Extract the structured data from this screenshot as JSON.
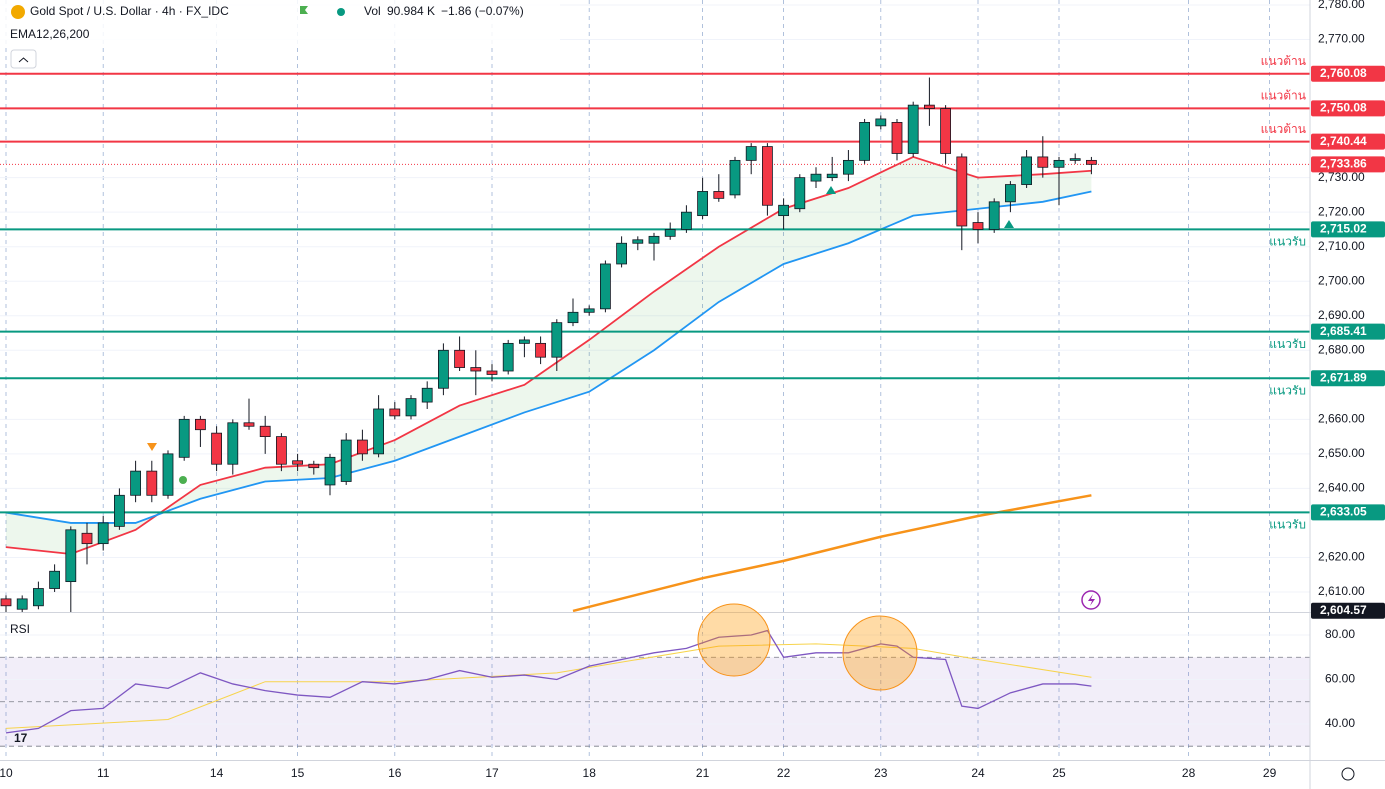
{
  "chart_data": {
    "type": "candlestick",
    "title": "Gold Spot / U.S. Dollar · 4h · FX_IDC",
    "volume_label": "Vol",
    "volume": "90.984 K",
    "change": "−1.86 (−0.07%)",
    "indicator_label": "EMA12,26,200",
    "rsi_label": "RSI",
    "categories": [
      "10",
      null,
      null,
      null,
      null,
      null,
      "11",
      null,
      null,
      null,
      null,
      null,
      null,
      "14",
      null,
      null,
      null,
      null,
      "15",
      null,
      null,
      null,
      null,
      null,
      "16",
      null,
      null,
      null,
      null,
      null,
      "17",
      null,
      null,
      null,
      null,
      null,
      "18",
      null,
      null,
      null,
      null,
      null,
      null,
      "21",
      null,
      null,
      null,
      null,
      "22",
      null,
      null,
      null,
      null,
      null,
      "23",
      null,
      null,
      null,
      null,
      null,
      "24",
      null,
      null,
      null,
      null,
      "25",
      null,
      null,
      null,
      null,
      null,
      null,
      null,
      "28",
      null,
      null,
      null,
      null,
      "29",
      null
    ],
    "candles": {
      "up_color": "#089981",
      "down_color": "#f23645",
      "open": [
        2608,
        2605,
        2606,
        2611,
        2613,
        2627,
        2624,
        2629,
        2638,
        2645,
        2638,
        2649,
        2660,
        2656,
        2647,
        2659,
        2658,
        2655,
        2648,
        2647,
        2641,
        2642,
        2654,
        2650,
        2663,
        2661,
        2665,
        2669,
        2680,
        2675,
        2674,
        2674,
        2682,
        2682,
        2678,
        2688,
        2691,
        2692,
        2705,
        2711,
        2711,
        2713,
        2715,
        2719,
        2726,
        2725,
        2735,
        2739,
        2719,
        2721,
        2729,
        2730,
        2731,
        2735,
        2745,
        2746,
        2737,
        2751,
        2750,
        2736,
        2717,
        2715,
        2723,
        2728,
        2736,
        2733,
        2735,
        2735,
        null,
        null,
        null,
        null,
        null,
        null,
        null,
        null,
        null,
        null,
        null,
        null
      ],
      "high": [
        2609,
        2609,
        2613,
        2618,
        2629,
        2630,
        2632,
        2640,
        2648,
        2648,
        2651,
        2661,
        2661,
        2658,
        2660,
        2666,
        2661,
        2656,
        2650,
        2648,
        2650,
        2656,
        2657,
        2667,
        2665,
        2667,
        2671,
        2682,
        2684,
        2680,
        2676,
        2683,
        2684,
        2684,
        2689,
        2695,
        2693,
        2706,
        2713,
        2713,
        2714,
        2717,
        2722,
        2730,
        2731,
        2736,
        2740,
        2740,
        2724,
        2731,
        2733,
        2736,
        2738,
        2747,
        2748,
        2747,
        2752,
        2759,
        2751,
        2737,
        2720,
        2724,
        2729,
        2738,
        2742,
        2736,
        2737,
        2736,
        null,
        null,
        null,
        null,
        null,
        null,
        null,
        null,
        null,
        null,
        null,
        null
      ],
      "low": [
        2604,
        2604,
        2605,
        2610,
        2604,
        2618,
        2622,
        2628,
        2636,
        2636,
        2637,
        2648,
        2652,
        2645,
        2644,
        2657,
        2650,
        2645,
        2645,
        2644,
        2638,
        2641,
        2648,
        2649,
        2660,
        2660,
        2663,
        2667,
        2674,
        2667,
        2671,
        2673,
        2678,
        2676,
        2674,
        2687,
        2690,
        2691,
        2704,
        2709,
        2706,
        2712,
        2714,
        2718,
        2723,
        2724,
        2731,
        2719,
        2715,
        2720,
        2727,
        2729,
        2729,
        2734,
        2744,
        2735,
        2736,
        2745,
        2734,
        2709,
        2711,
        2714,
        2720,
        2727,
        2730,
        2722,
        2734,
        2731,
        null,
        null,
        null,
        null,
        null,
        null,
        null,
        null,
        null,
        null,
        null,
        null
      ],
      "close": [
        2606,
        2608,
        2611,
        2616,
        2628,
        2624,
        2630,
        2638,
        2645,
        2638,
        2650,
        2660,
        2657,
        2647,
        2659,
        2658,
        2655,
        2647,
        2647,
        2646,
        2649,
        2654,
        2650,
        2663,
        2661,
        2666,
        2669,
        2680,
        2675,
        2674,
        2673,
        2682,
        2683,
        2678,
        2688,
        2691,
        2692,
        2705,
        2711,
        2712,
        2713,
        2715,
        2720,
        2726,
        2724,
        2735,
        2739,
        2722,
        2722,
        2730,
        2731,
        2731,
        2735,
        2746,
        2747,
        2737,
        2751,
        2750,
        2737,
        2716,
        2715,
        2723,
        2728,
        2736,
        2733,
        2735,
        2735.5,
        2733.86,
        null,
        null,
        null,
        null,
        null,
        null,
        null,
        null,
        null,
        null,
        null,
        null
      ]
    },
    "series": [
      {
        "name": "EMA12",
        "color": "#f23645",
        "x": [
          0,
          4,
          8,
          12,
          16,
          20,
          24,
          28,
          32,
          36,
          40,
          44,
          48,
          52,
          56,
          60,
          64,
          67
        ],
        "values": [
          2623,
          2621,
          2628,
          2641,
          2646,
          2647,
          2654,
          2664,
          2670,
          2683,
          2697,
          2710,
          2721,
          2727,
          2736,
          2730,
          2731,
          2732
        ]
      },
      {
        "name": "EMA26",
        "color": "#2196f3",
        "x": [
          0,
          4,
          8,
          12,
          16,
          20,
          24,
          28,
          32,
          36,
          40,
          44,
          48,
          52,
          56,
          60,
          64,
          67
        ],
        "values": [
          2633,
          2630,
          2630,
          2637,
          2642,
          2643,
          2648,
          2655,
          2662,
          2668,
          2680,
          2694,
          2705,
          2711,
          2719,
          2721,
          2723,
          2726
        ]
      },
      {
        "name": "EMA200",
        "color": "#f7931a",
        "x": [
          35,
          43,
          48,
          54,
          60,
          67
        ],
        "values": [
          2604.5,
          2614,
          2619,
          2626,
          2632,
          2638
        ]
      }
    ],
    "ylim": [
      2604.2,
      2781.45
    ],
    "yticks": [
      {
        "value": 2780,
        "label": "2,780.00"
      },
      {
        "value": 2770,
        "label": "2,770.00"
      },
      {
        "value": 2730,
        "label": "2,730.00"
      },
      {
        "value": 2720,
        "label": "2,720.00"
      },
      {
        "value": 2710,
        "label": "2,710.00"
      },
      {
        "value": 2700,
        "label": "2,700.00"
      },
      {
        "value": 2690,
        "label": "2,690.00"
      },
      {
        "value": 2680,
        "label": "2,680.00"
      },
      {
        "value": 2660,
        "label": "2,660.00"
      },
      {
        "value": 2650,
        "label": "2,650.00"
      },
      {
        "value": 2640,
        "label": "2,640.00"
      },
      {
        "value": 2620,
        "label": "2,620.00"
      },
      {
        "value": 2610,
        "label": "2,610.00"
      }
    ],
    "levels": [
      {
        "value": 2760.08,
        "label": "2,760.08",
        "note": "แนวต้าน",
        "color": "#f23645"
      },
      {
        "value": 2750.08,
        "label": "2,750.08",
        "note": "แนวต้าน",
        "color": "#f23645"
      },
      {
        "value": 2740.44,
        "label": "2,740.44",
        "note": "แนวต้าน",
        "color": "#f23645"
      },
      {
        "value": 2715.02,
        "label": "2,715.02",
        "note": "แนวรับ",
        "color": "#089981"
      },
      {
        "value": 2685.41,
        "label": "2,685.41",
        "note": "แนวรับ",
        "color": "#089981"
      },
      {
        "value": 2671.89,
        "label": "2,671.89",
        "note": "แนวรับ",
        "color": "#089981"
      },
      {
        "value": 2633.05,
        "label": "2,633.05",
        "note": "แนวรับ",
        "color": "#089981"
      }
    ],
    "last_price": {
      "value": 2733.86,
      "label": "2,733.86",
      "color": "#f23645"
    },
    "axis_marker": {
      "value": 2604.57,
      "label": "2,604.57"
    },
    "rsi": {
      "color": "#7e57c2",
      "x": [
        0,
        2,
        4,
        6,
        8,
        10,
        12,
        14,
        16,
        18,
        20,
        22,
        24,
        26,
        28,
        30,
        32,
        34,
        36,
        38,
        40,
        42,
        44,
        46,
        47,
        48,
        50,
        52,
        54,
        55,
        56,
        58,
        59,
        60,
        62,
        64,
        66,
        67
      ],
      "values": [
        36,
        38,
        46,
        47,
        58,
        56,
        63,
        58,
        55,
        53,
        52,
        59,
        58,
        60,
        64,
        61,
        62,
        60,
        66,
        69,
        72,
        74,
        79,
        80,
        82,
        70,
        72,
        72,
        76,
        75,
        70,
        69,
        48,
        47,
        54,
        58,
        58,
        57
      ]
    },
    "rsi_ma": {
      "color": "#f7d44c",
      "x": [
        0,
        10,
        16,
        24,
        34,
        44,
        50,
        56,
        60,
        67
      ],
      "values": [
        38,
        42,
        59,
        59,
        63,
        75,
        76,
        74,
        69,
        61
      ]
    },
    "rsi_ylim": [
      23.8,
      89.9
    ],
    "rsi_yticks": [
      {
        "value": 80,
        "label": "80.00"
      },
      {
        "value": 60,
        "label": "60.00"
      },
      {
        "value": 40,
        "label": "40.00"
      }
    ],
    "rsi_bands": [
      70,
      50,
      30
    ]
  }
}
